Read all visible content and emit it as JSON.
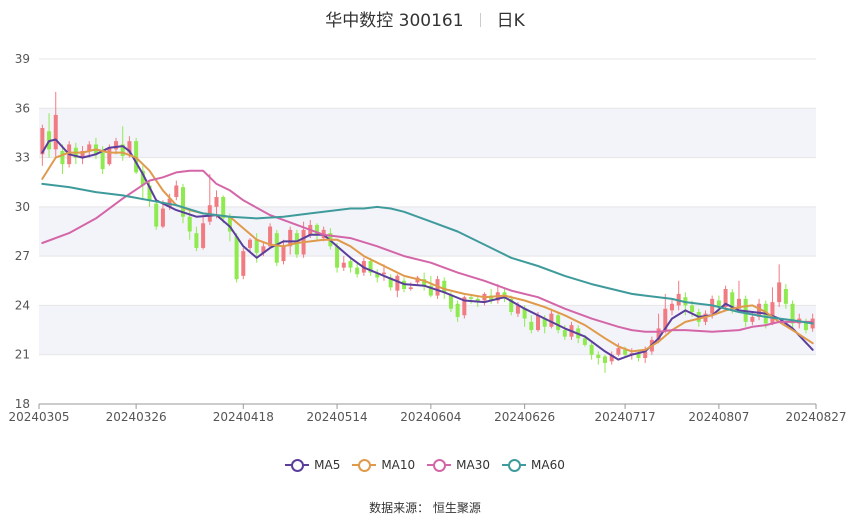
{
  "title": {
    "name": "华中数控 300161",
    "period": "日K"
  },
  "source": "数据来源： 恒生聚源",
  "colors": {
    "up": "#f07c82",
    "down": "#8fea4f",
    "MA5": "#5b3e9c",
    "MA10": "#e09a4b",
    "MA30": "#d466a8",
    "MA60": "#3f9b9b",
    "band": "#f3f4fa",
    "grid": "#e6e6e6"
  },
  "chart_data": {
    "type": "candlestick",
    "ylim": [
      18,
      39
    ],
    "yticks": [
      "18",
      "21",
      "24",
      "27",
      "30",
      "33",
      "36",
      "39"
    ],
    "xticks": [
      {
        "label": "20240305",
        "index": 0
      },
      {
        "label": "20240326",
        "index": 14
      },
      {
        "label": "20240418",
        "index": 30
      },
      {
        "label": "20240514",
        "index": 44
      },
      {
        "label": "20240604",
        "index": 58
      },
      {
        "label": "20240626",
        "index": 72
      },
      {
        "label": "20240717",
        "index": 87
      },
      {
        "label": "20240807",
        "index": 101
      },
      {
        "label": "20240827",
        "index": 115
      }
    ],
    "grid": true,
    "legend_position": "bottom",
    "candle_count": 116,
    "candles": [
      [
        33.2,
        34.8,
        32.5,
        35.0
      ],
      [
        34.6,
        33.5,
        33.0,
        35.7
      ],
      [
        33.5,
        35.6,
        33.0,
        37.0
      ],
      [
        33.4,
        32.6,
        32.0,
        33.8
      ],
      [
        32.6,
        33.8,
        32.4,
        34.0
      ],
      [
        33.6,
        33.0,
        32.6,
        33.9
      ],
      [
        33.0,
        33.4,
        32.6,
        33.7
      ],
      [
        33.4,
        33.8,
        33.0,
        34.0
      ],
      [
        33.8,
        33.2,
        32.9,
        34.2
      ],
      [
        33.3,
        32.3,
        32.0,
        33.7
      ],
      [
        32.6,
        33.6,
        32.5,
        33.8
      ],
      [
        33.5,
        34.0,
        33.2,
        34.2
      ],
      [
        33.8,
        33.1,
        32.8,
        34.9
      ],
      [
        33.3,
        34.0,
        33.0,
        34.3
      ],
      [
        34.0,
        32.1,
        32.0,
        34.2
      ],
      [
        32.2,
        31.3,
        30.4,
        32.5
      ],
      [
        31.3,
        30.4,
        30.0,
        31.6
      ],
      [
        30.2,
        28.8,
        28.6,
        30.5
      ],
      [
        28.8,
        29.9,
        28.7,
        30.4
      ],
      [
        30.0,
        30.5,
        29.8,
        30.8
      ],
      [
        30.6,
        31.3,
        30.4,
        31.6
      ],
      [
        31.2,
        29.4,
        29.0,
        31.4
      ],
      [
        29.4,
        28.5,
        28.0,
        29.8
      ],
      [
        28.4,
        27.5,
        27.3,
        28.8
      ],
      [
        27.5,
        29.0,
        27.4,
        29.5
      ],
      [
        29.1,
        30.1,
        28.9,
        32.0
      ],
      [
        30.0,
        30.6,
        29.3,
        31.0
      ],
      [
        30.6,
        29.3,
        29.0,
        30.7
      ],
      [
        29.4,
        28.5,
        27.9,
        29.6
      ],
      [
        28.2,
        25.6,
        25.4,
        28.4
      ],
      [
        25.8,
        27.3,
        25.6,
        27.5
      ],
      [
        27.5,
        28.0,
        27.2,
        28.1
      ],
      [
        28.0,
        27.2,
        26.6,
        28.4
      ],
      [
        27.2,
        27.6,
        27.0,
        27.9
      ],
      [
        27.6,
        28.8,
        27.5,
        29.0
      ],
      [
        28.4,
        26.6,
        26.4,
        28.6
      ],
      [
        26.7,
        27.6,
        26.5,
        28.0
      ],
      [
        27.6,
        28.6,
        27.1,
        28.8
      ],
      [
        28.4,
        27.1,
        26.9,
        28.6
      ],
      [
        27.1,
        28.6,
        26.9,
        29.1
      ],
      [
        28.3,
        28.9,
        28.1,
        29.2
      ],
      [
        28.9,
        28.3,
        28.0,
        29.0
      ],
      [
        28.1,
        28.6,
        27.9,
        28.8
      ],
      [
        28.4,
        27.6,
        27.4,
        28.7
      ],
      [
        27.6,
        26.3,
        26.0,
        27.8
      ],
      [
        26.3,
        26.6,
        26.1,
        27.0
      ],
      [
        26.7,
        26.3,
        26.0,
        26.9
      ],
      [
        26.3,
        25.9,
        25.7,
        26.6
      ],
      [
        26.0,
        26.7,
        25.8,
        26.9
      ],
      [
        26.7,
        26.0,
        25.8,
        26.9
      ],
      [
        26.0,
        25.7,
        25.4,
        26.2
      ],
      [
        25.9,
        26.0,
        25.5,
        26.5
      ],
      [
        25.7,
        25.1,
        24.9,
        25.9
      ],
      [
        24.9,
        25.8,
        24.5,
        25.9
      ],
      [
        25.5,
        25.0,
        24.8,
        25.7
      ],
      [
        25.0,
        25.1,
        24.9,
        25.4
      ],
      [
        25.4,
        25.7,
        25.2,
        25.8
      ],
      [
        25.6,
        25.2,
        24.9,
        26.0
      ],
      [
        25.2,
        24.6,
        24.5,
        25.8
      ],
      [
        24.6,
        25.6,
        24.4,
        25.8
      ],
      [
        25.5,
        24.8,
        24.4,
        25.7
      ],
      [
        24.6,
        23.8,
        23.6,
        24.8
      ],
      [
        24.1,
        23.3,
        23.0,
        24.3
      ],
      [
        23.4,
        24.5,
        23.2,
        24.6
      ],
      [
        24.5,
        24.4,
        24.1,
        24.7
      ],
      [
        24.4,
        24.2,
        23.9,
        24.6
      ],
      [
        24.3,
        24.7,
        24.0,
        24.8
      ],
      [
        24.6,
        24.3,
        24.1,
        25.0
      ],
      [
        24.3,
        24.8,
        24.1,
        25.3
      ],
      [
        24.8,
        24.4,
        24.2,
        25.0
      ],
      [
        24.4,
        23.6,
        23.4,
        24.6
      ],
      [
        23.5,
        24.0,
        23.3,
        24.2
      ],
      [
        23.8,
        23.2,
        22.7,
        24.0
      ],
      [
        23.0,
        22.5,
        22.3,
        23.4
      ],
      [
        22.5,
        23.4,
        22.4,
        23.6
      ],
      [
        23.2,
        22.7,
        22.3,
        23.4
      ],
      [
        22.7,
        23.5,
        22.6,
        23.8
      ],
      [
        23.4,
        22.5,
        22.3,
        23.6
      ],
      [
        22.5,
        22.1,
        21.9,
        22.8
      ],
      [
        22.1,
        22.8,
        21.9,
        23.0
      ],
      [
        22.6,
        22.0,
        21.7,
        22.8
      ],
      [
        22.0,
        21.6,
        21.5,
        22.2
      ],
      [
        21.6,
        21.0,
        20.7,
        21.8
      ],
      [
        21.0,
        20.8,
        20.4,
        21.2
      ],
      [
        20.9,
        20.5,
        19.9,
        21.0
      ],
      [
        20.6,
        21.0,
        20.4,
        21.2
      ],
      [
        21.0,
        21.4,
        20.9,
        21.7
      ],
      [
        21.3,
        21.0,
        20.8,
        21.5
      ],
      [
        21.0,
        21.1,
        20.7,
        21.4
      ],
      [
        21.1,
        20.8,
        20.6,
        21.3
      ],
      [
        20.8,
        21.2,
        20.5,
        21.5
      ],
      [
        21.2,
        21.9,
        21.0,
        22.1
      ],
      [
        21.9,
        22.6,
        21.7,
        23.5
      ],
      [
        22.5,
        23.8,
        22.3,
        24.7
      ],
      [
        23.7,
        24.1,
        23.4,
        24.4
      ],
      [
        24.0,
        24.7,
        23.7,
        25.5
      ],
      [
        24.5,
        24.0,
        23.4,
        24.8
      ],
      [
        24.0,
        23.6,
        23.3,
        24.3
      ],
      [
        23.6,
        23.0,
        22.7,
        23.8
      ],
      [
        23.0,
        23.5,
        22.8,
        23.7
      ],
      [
        23.5,
        24.4,
        23.2,
        24.6
      ],
      [
        24.3,
        23.9,
        23.5,
        24.6
      ],
      [
        23.9,
        25.0,
        23.7,
        25.2
      ],
      [
        24.8,
        23.8,
        23.5,
        25.0
      ],
      [
        23.8,
        24.4,
        23.6,
        25.5
      ],
      [
        24.4,
        23.0,
        22.7,
        24.6
      ],
      [
        23.0,
        23.3,
        22.8,
        23.6
      ],
      [
        23.3,
        24.1,
        23.1,
        24.4
      ],
      [
        24.1,
        22.9,
        22.6,
        24.3
      ],
      [
        22.9,
        24.2,
        22.8,
        25.1
      ],
      [
        24.2,
        25.4,
        23.9,
        26.5
      ],
      [
        25.0,
        24.1,
        23.8,
        25.3
      ],
      [
        24.1,
        22.9,
        22.6,
        24.3
      ],
      [
        22.9,
        23.2,
        22.6,
        23.5
      ],
      [
        23.0,
        22.5,
        22.3,
        23.2
      ],
      [
        22.6,
        23.2,
        22.4,
        23.5
      ]
    ],
    "series": [
      {
        "name": "MA5",
        "x": [
          0,
          1,
          2,
          4,
          6,
          8,
          10,
          12,
          13,
          15,
          17,
          20,
          23,
          26,
          28,
          30,
          32,
          34,
          36,
          38,
          40,
          42,
          44,
          46,
          48,
          51,
          54,
          57,
          60,
          63,
          66,
          69,
          72,
          75,
          78,
          81,
          84,
          86,
          88,
          90,
          92,
          94,
          96,
          98,
          100,
          102,
          104,
          106,
          108,
          110,
          112,
          115
        ],
        "values": [
          33.3,
          34.0,
          34.1,
          33.2,
          33.0,
          33.2,
          33.6,
          33.7,
          33.4,
          32.0,
          30.4,
          29.8,
          29.4,
          29.5,
          28.8,
          27.6,
          26.9,
          27.5,
          27.9,
          27.9,
          28.3,
          28.3,
          27.6,
          26.9,
          26.3,
          25.8,
          25.3,
          25.2,
          24.8,
          24.3,
          24.2,
          24.5,
          23.8,
          23.2,
          22.6,
          22.1,
          21.2,
          20.7,
          21.0,
          21.2,
          22.0,
          23.2,
          23.7,
          23.3,
          23.4,
          24.1,
          23.7,
          23.6,
          23.5,
          23.2,
          22.6,
          21.3
        ]
      },
      {
        "name": "MA10",
        "x": [
          0,
          2,
          4,
          6,
          8,
          10,
          12,
          14,
          16,
          18,
          20,
          22,
          24,
          26,
          28,
          30,
          32,
          34,
          36,
          38,
          40,
          42,
          44,
          46,
          48,
          51,
          54,
          57,
          60,
          63,
          66,
          69,
          72,
          75,
          78,
          81,
          84,
          86,
          88,
          90,
          92,
          94,
          96,
          98,
          100,
          102,
          104,
          106,
          108,
          110,
          112,
          115
        ],
        "values": [
          31.7,
          33.0,
          33.3,
          33.3,
          33.5,
          33.3,
          33.3,
          33.0,
          32.2,
          31.0,
          30.1,
          29.8,
          29.6,
          29.5,
          29.4,
          28.7,
          28.0,
          27.7,
          27.6,
          27.8,
          27.9,
          28.0,
          28.0,
          27.6,
          27.0,
          26.4,
          25.8,
          25.5,
          25.0,
          24.7,
          24.5,
          24.6,
          24.3,
          23.9,
          23.4,
          22.8,
          22.0,
          21.5,
          21.2,
          21.3,
          21.8,
          22.5,
          23.0,
          23.2,
          23.4,
          23.7,
          23.9,
          24.0,
          23.6,
          23.0,
          22.5,
          21.7
        ]
      },
      {
        "name": "MA30",
        "x": [
          0,
          4,
          8,
          12,
          16,
          18,
          20,
          22,
          24,
          26,
          28,
          30,
          34,
          38,
          42,
          46,
          50,
          54,
          58,
          62,
          66,
          70,
          74,
          78,
          82,
          86,
          88,
          90,
          92,
          94,
          96,
          100,
          104,
          106,
          108,
          110,
          112,
          115
        ],
        "values": [
          27.8,
          28.4,
          29.3,
          30.5,
          31.6,
          31.8,
          32.1,
          32.2,
          32.2,
          31.4,
          31.0,
          30.4,
          29.5,
          28.9,
          28.3,
          28.1,
          27.6,
          27.0,
          26.6,
          26.0,
          25.5,
          24.9,
          24.5,
          23.8,
          23.2,
          22.7,
          22.5,
          22.4,
          22.4,
          22.5,
          22.5,
          22.4,
          22.5,
          22.7,
          22.8,
          23.0,
          23.0,
          23.0
        ]
      },
      {
        "name": "MA60",
        "x": [
          0,
          4,
          8,
          12,
          16,
          20,
          24,
          28,
          32,
          36,
          40,
          44,
          46,
          48,
          50,
          52,
          54,
          58,
          62,
          66,
          70,
          74,
          78,
          82,
          86,
          88,
          90,
          92,
          94,
          96,
          100,
          104,
          108,
          112,
          115
        ],
        "values": [
          31.4,
          31.2,
          30.9,
          30.7,
          30.4,
          30.1,
          29.6,
          29.4,
          29.3,
          29.4,
          29.6,
          29.8,
          29.9,
          29.9,
          30.0,
          29.9,
          29.7,
          29.1,
          28.5,
          27.7,
          26.9,
          26.4,
          25.8,
          25.3,
          24.9,
          24.7,
          24.6,
          24.5,
          24.4,
          24.2,
          24.0,
          23.6,
          23.3,
          23.1,
          22.9
        ]
      }
    ]
  },
  "legend": {
    "items": [
      "MA5",
      "MA10",
      "MA30",
      "MA60"
    ]
  }
}
